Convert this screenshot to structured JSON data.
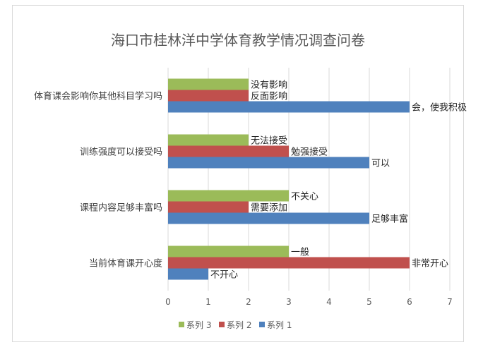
{
  "chart_data": {
    "type": "bar",
    "orientation": "horizontal",
    "title": "海口市桂林洋中学体育教学情况调查问卷",
    "categories": [
      "当前体育课开心度",
      "课程内容足够丰富吗",
      "训练强度可以接受吗",
      "体育课会影响你其他科目学习吗"
    ],
    "series": [
      {
        "name": "系列 1",
        "color": "#4f81bd",
        "values": [
          1,
          5,
          5,
          6
        ],
        "labels": [
          "不开心",
          "足够丰富",
          "可以",
          "会，使我积极"
        ]
      },
      {
        "name": "系列 2",
        "color": "#c0504d",
        "values": [
          6,
          2,
          3,
          2
        ],
        "labels": [
          "非常开心",
          "需要添加",
          "勉强接受",
          "反面影响"
        ]
      },
      {
        "name": "系列 3",
        "color": "#9bbb59",
        "values": [
          3,
          3,
          2,
          2
        ],
        "labels": [
          "一般",
          "不关心",
          "无法接受",
          "没有影响"
        ]
      }
    ],
    "xlim": [
      0,
      7
    ],
    "xticks": [
      "0",
      "1",
      "2",
      "3",
      "4",
      "5",
      "6",
      "7"
    ],
    "grid": true,
    "legend_position": "bottom",
    "legend_order": [
      "系列 3",
      "系列 2",
      "系列 1"
    ]
  }
}
